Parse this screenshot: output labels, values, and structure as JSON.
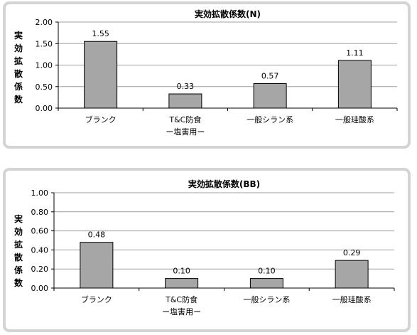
{
  "chart_data": [
    {
      "type": "bar",
      "title": "実効拡散係数(N)",
      "ylabel": [
        "実",
        "効",
        "拡",
        "散",
        "係",
        "数"
      ],
      "categories": [
        [
          "ブランク"
        ],
        [
          "T&C防食",
          "ー塩害用ー"
        ],
        [
          "一般シラン系"
        ],
        [
          "一般珪酸系"
        ]
      ],
      "values": [
        1.55,
        0.33,
        0.57,
        1.11
      ],
      "data_labels": [
        "1.55",
        "0.33",
        "0.57",
        "1.11"
      ],
      "ylim": [
        0,
        2.0
      ],
      "yticks": [
        "0.00",
        "0.50",
        "1.00",
        "1.50",
        "2.00"
      ],
      "grid": true,
      "bar_color": "#a6a6a6"
    },
    {
      "type": "bar",
      "title": "実効拡散係数(BB)",
      "ylabel": [
        "実",
        "効",
        "拡",
        "散",
        "係",
        "数"
      ],
      "categories": [
        [
          "ブランク"
        ],
        [
          "T&C防食",
          "ー塩害用ー"
        ],
        [
          "一般シラン系"
        ],
        [
          "一般珪酸系"
        ]
      ],
      "values": [
        0.48,
        0.1,
        0.1,
        0.29
      ],
      "data_labels": [
        "0.48",
        "0.10",
        "0.10",
        "0.29"
      ],
      "ylim": [
        0,
        1.0
      ],
      "yticks": [
        "0.00",
        "0.20",
        "0.40",
        "0.60",
        "0.80",
        "1.00"
      ],
      "grid": true,
      "bar_color": "#a6a6a6"
    }
  ]
}
